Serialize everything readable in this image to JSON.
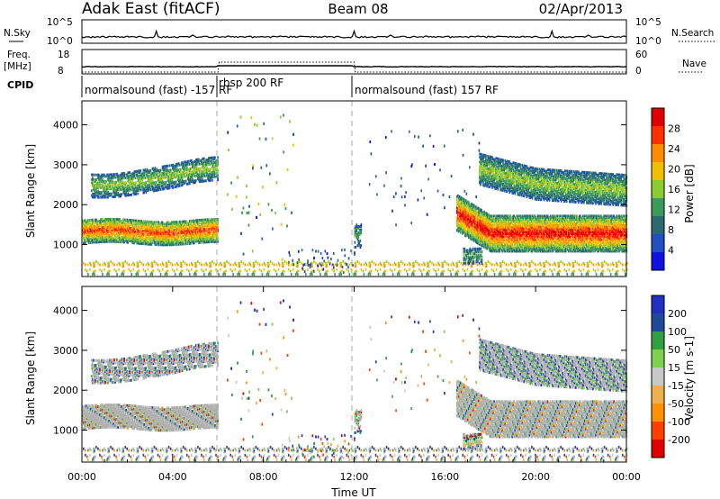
{
  "header": {
    "station": "Adak East (fitACF)",
    "beam": "Beam 08",
    "date": "02/Apr/2013"
  },
  "labels": {
    "nsky": "N.Sky",
    "freq": "Freq.",
    "mhz": "[MHz]",
    "cpid": "CPID",
    "nsearch": "N.Search",
    "nave": "Nave"
  },
  "noise_panel": {
    "left_ticks": [
      "10^5",
      "10^0"
    ],
    "right_ticks": [
      "10^5",
      "10^0"
    ]
  },
  "freq_panel": {
    "left_ticks": [
      "18",
      "8"
    ],
    "right_ticks": [
      "60",
      "0"
    ]
  },
  "cpid_segments": [
    {
      "text": "normalsound (fast) -157 RF",
      "start_hour": 0
    },
    {
      "text": "rbsp 200 RF",
      "start_hour": 6
    },
    {
      "text": "normalsound (fast) 157 RF",
      "start_hour": 12
    }
  ],
  "colors": {
    "power": [
      "#1010e0",
      "#2050c0",
      "#2a6a70",
      "#3c9a5a",
      "#8ccc30",
      "#f0c000",
      "#ff8c00",
      "#ff3000",
      "#e00000"
    ],
    "velocity": [
      "#e00000",
      "#ff4000",
      "#ff9000",
      "#f0b050",
      "#c8c8c8",
      "#80d050",
      "#30a040",
      "#204898",
      "#2030c0"
    ],
    "ground_scatter": "#b0b0b0"
  },
  "chart_data": [
    {
      "type": "heatmap",
      "panel": "power",
      "xlabel": "",
      "ylabel": "Slant Range [km]",
      "xlim": [
        0,
        24
      ],
      "ylim": [
        200,
        4600
      ],
      "y_ticks": [
        1000,
        2000,
        3000,
        4000
      ],
      "colorbar": {
        "label": "Power [dB]",
        "ticks": [
          4,
          8,
          12,
          16,
          20,
          24,
          28
        ],
        "range": [
          0,
          32
        ]
      },
      "scatter_regions": [
        {
          "t": [
            0.0,
            6.0
          ],
          "range": [
            1000,
            1600
          ],
          "note": "strong band"
        },
        {
          "t": [
            0.5,
            6.0
          ],
          "range": [
            2300,
            2900
          ]
        },
        {
          "t": [
            6.5,
            9.0
          ],
          "range": [
            500,
            4300
          ],
          "note": "sparse"
        },
        {
          "t": [
            12.0,
            12.3
          ],
          "range": [
            900,
            1500
          ]
        },
        {
          "t": [
            16.5,
            24.0
          ],
          "range": [
            800,
            1700
          ],
          "note": "strongest 21-23h"
        },
        {
          "t": [
            17.5,
            24.0
          ],
          "range": [
            2100,
            3000
          ]
        },
        {
          "t": [
            0.0,
            24.0
          ],
          "range": [
            200,
            600
          ],
          "note": "near range"
        }
      ]
    },
    {
      "type": "heatmap",
      "panel": "velocity",
      "xlabel": "Time UT",
      "ylabel": "Slant Range [km]",
      "xlim": [
        0,
        24
      ],
      "ylim": [
        200,
        4600
      ],
      "y_ticks": [
        1000,
        2000,
        3000,
        4000
      ],
      "x_ticks": [
        "00:00",
        "04:00",
        "08:00",
        "12:00",
        "16:00",
        "20:00",
        "00:00"
      ],
      "colorbar": {
        "label": "Velocity [m s-1]",
        "ticks": [
          200,
          100,
          50,
          15,
          -15,
          -50,
          -100,
          -200
        ]
      }
    }
  ]
}
